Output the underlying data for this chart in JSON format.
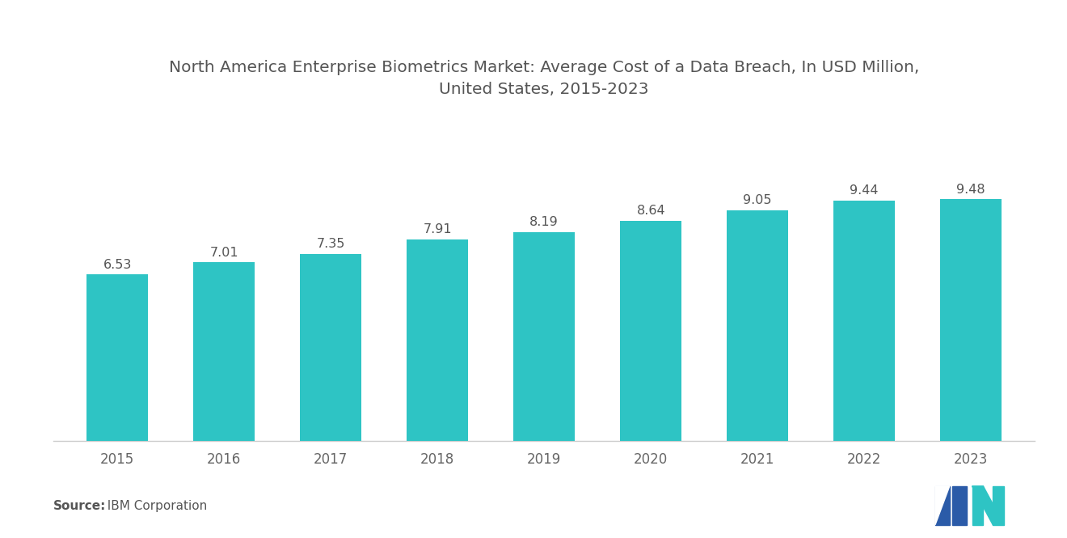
{
  "title": "North America Enterprise Biometrics Market: Average Cost of a Data Breach, In USD Million,\nUnited States, 2015-2023",
  "years": [
    "2015",
    "2016",
    "2017",
    "2018",
    "2019",
    "2020",
    "2021",
    "2022",
    "2023"
  ],
  "values": [
    6.53,
    7.01,
    7.35,
    7.91,
    8.19,
    8.64,
    9.05,
    9.44,
    9.48
  ],
  "bar_color": "#2EC4C4",
  "background_color": "#FFFFFF",
  "title_color": "#555555",
  "label_color": "#555555",
  "tick_color": "#666666",
  "source_label_bold": "Source:",
  "source_text": "  IBM Corporation",
  "ylim": [
    0,
    13.5
  ],
  "bar_width": 0.58,
  "title_fontsize": 14.5,
  "label_fontsize": 11.5,
  "tick_fontsize": 12,
  "source_fontsize": 11,
  "logo_dark": "#2B5BA8",
  "logo_cyan": "#2EC4C4"
}
